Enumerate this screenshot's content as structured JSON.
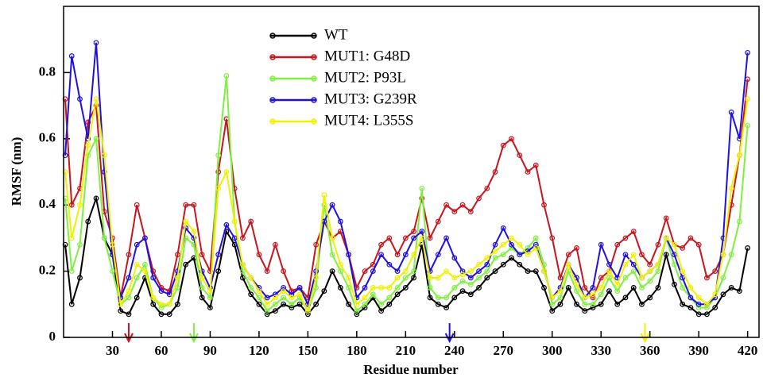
{
  "chart_data": {
    "type": "line",
    "x_label": "Residue number",
    "y_label": "RMSF (nm)",
    "xlim": [
      0,
      427
    ],
    "ylim": [
      0,
      1
    ],
    "xticks": [
      30,
      60,
      90,
      120,
      150,
      180,
      210,
      240,
      270,
      300,
      330,
      360,
      390,
      420
    ],
    "yticks": [
      0,
      0.2,
      0.4,
      0.6,
      0.8
    ],
    "legend": "upper center",
    "markers": true,
    "x": [
      1,
      5,
      10,
      15,
      20,
      25,
      30,
      35,
      40,
      45,
      50,
      55,
      60,
      65,
      70,
      75,
      80,
      85,
      90,
      95,
      100,
      105,
      110,
      115,
      120,
      125,
      130,
      135,
      140,
      145,
      150,
      155,
      160,
      165,
      170,
      175,
      180,
      185,
      190,
      195,
      200,
      205,
      210,
      215,
      220,
      225,
      230,
      235,
      240,
      245,
      250,
      255,
      260,
      265,
      270,
      275,
      280,
      285,
      290,
      295,
      300,
      305,
      310,
      315,
      320,
      325,
      330,
      335,
      340,
      345,
      350,
      355,
      360,
      365,
      370,
      375,
      380,
      385,
      390,
      395,
      400,
      405,
      410,
      415,
      420
    ],
    "series": [
      {
        "name": "WT",
        "color": "#000000",
        "values": [
          0.28,
          0.1,
          0.18,
          0.35,
          0.42,
          0.3,
          0.25,
          0.08,
          0.07,
          0.12,
          0.18,
          0.1,
          0.07,
          0.07,
          0.1,
          0.22,
          0.24,
          0.12,
          0.09,
          0.2,
          0.32,
          0.28,
          0.18,
          0.13,
          0.1,
          0.07,
          0.08,
          0.1,
          0.09,
          0.1,
          0.07,
          0.1,
          0.14,
          0.2,
          0.15,
          0.1,
          0.07,
          0.09,
          0.12,
          0.08,
          0.1,
          0.13,
          0.15,
          0.18,
          0.28,
          0.12,
          0.1,
          0.09,
          0.12,
          0.14,
          0.13,
          0.15,
          0.18,
          0.2,
          0.22,
          0.24,
          0.22,
          0.2,
          0.2,
          0.15,
          0.08,
          0.1,
          0.15,
          0.1,
          0.08,
          0.09,
          0.1,
          0.14,
          0.1,
          0.12,
          0.15,
          0.1,
          0.12,
          0.15,
          0.25,
          0.16,
          0.1,
          0.09,
          0.07,
          0.07,
          0.09,
          0.13,
          0.15,
          0.14,
          0.27
        ]
      },
      {
        "name": "MUT1: G48D",
        "color": "#c8141e",
        "values": [
          0.72,
          0.4,
          0.45,
          0.65,
          0.7,
          0.38,
          0.3,
          0.12,
          0.25,
          0.4,
          0.3,
          0.2,
          0.15,
          0.14,
          0.25,
          0.4,
          0.4,
          0.25,
          0.2,
          0.5,
          0.66,
          0.45,
          0.3,
          0.35,
          0.25,
          0.2,
          0.28,
          0.2,
          0.14,
          0.15,
          0.12,
          0.28,
          0.35,
          0.3,
          0.32,
          0.25,
          0.15,
          0.2,
          0.22,
          0.28,
          0.3,
          0.25,
          0.3,
          0.32,
          0.42,
          0.3,
          0.35,
          0.4,
          0.38,
          0.4,
          0.38,
          0.42,
          0.45,
          0.5,
          0.58,
          0.6,
          0.55,
          0.5,
          0.52,
          0.4,
          0.3,
          0.18,
          0.25,
          0.27,
          0.15,
          0.12,
          0.18,
          0.2,
          0.28,
          0.3,
          0.32,
          0.25,
          0.22,
          0.28,
          0.36,
          0.28,
          0.27,
          0.3,
          0.28,
          0.18,
          0.2,
          0.25,
          0.4,
          0.55,
          0.78
        ]
      },
      {
        "name": "MUT2: P93L",
        "color": "#80f040",
        "values": [
          0.42,
          0.2,
          0.28,
          0.55,
          0.6,
          0.3,
          0.2,
          0.1,
          0.12,
          0.18,
          0.22,
          0.12,
          0.09,
          0.1,
          0.15,
          0.3,
          0.28,
          0.15,
          0.12,
          0.55,
          0.79,
          0.35,
          0.2,
          0.15,
          0.12,
          0.08,
          0.1,
          0.12,
          0.1,
          0.12,
          0.08,
          0.15,
          0.4,
          0.25,
          0.2,
          0.15,
          0.08,
          0.1,
          0.13,
          0.1,
          0.12,
          0.15,
          0.18,
          0.2,
          0.45,
          0.15,
          0.12,
          0.12,
          0.15,
          0.17,
          0.16,
          0.18,
          0.2,
          0.24,
          0.25,
          0.27,
          0.25,
          0.27,
          0.3,
          0.22,
          0.1,
          0.12,
          0.2,
          0.14,
          0.1,
          0.1,
          0.13,
          0.18,
          0.14,
          0.18,
          0.2,
          0.15,
          0.17,
          0.2,
          0.3,
          0.22,
          0.15,
          0.12,
          0.09,
          0.09,
          0.12,
          0.18,
          0.25,
          0.35,
          0.64
        ]
      },
      {
        "name": "MUT3: G239R",
        "color": "#2010e0",
        "values": [
          0.55,
          0.85,
          0.72,
          0.6,
          0.89,
          0.5,
          0.25,
          0.12,
          0.18,
          0.28,
          0.3,
          0.18,
          0.14,
          0.13,
          0.2,
          0.33,
          0.3,
          0.2,
          0.15,
          0.25,
          0.34,
          0.3,
          0.22,
          0.18,
          0.15,
          0.12,
          0.13,
          0.15,
          0.13,
          0.15,
          0.1,
          0.2,
          0.35,
          0.4,
          0.35,
          0.25,
          0.12,
          0.15,
          0.2,
          0.25,
          0.22,
          0.2,
          0.25,
          0.3,
          0.32,
          0.2,
          0.25,
          0.3,
          0.24,
          0.2,
          0.18,
          0.2,
          0.22,
          0.28,
          0.33,
          0.28,
          0.25,
          0.26,
          0.28,
          0.2,
          0.12,
          0.15,
          0.22,
          0.18,
          0.12,
          0.15,
          0.28,
          0.22,
          0.18,
          0.25,
          0.22,
          0.18,
          0.2,
          0.22,
          0.3,
          0.25,
          0.18,
          0.12,
          0.1,
          0.1,
          0.12,
          0.3,
          0.68,
          0.6,
          0.86
        ]
      },
      {
        "name": "MUT4: L355S",
        "color": "#f0f000",
        "values": [
          0.5,
          0.3,
          0.4,
          0.58,
          0.72,
          0.55,
          0.28,
          0.1,
          0.14,
          0.22,
          0.2,
          0.12,
          0.1,
          0.1,
          0.18,
          0.35,
          0.32,
          0.18,
          0.14,
          0.45,
          0.5,
          0.35,
          0.22,
          0.18,
          0.14,
          0.1,
          0.12,
          0.14,
          0.12,
          0.13,
          0.08,
          0.18,
          0.43,
          0.3,
          0.22,
          0.18,
          0.1,
          0.12,
          0.15,
          0.15,
          0.15,
          0.18,
          0.2,
          0.25,
          0.3,
          0.18,
          0.18,
          0.2,
          0.18,
          0.19,
          0.2,
          0.22,
          0.24,
          0.26,
          0.28,
          0.3,
          0.28,
          0.25,
          0.27,
          0.2,
          0.12,
          0.14,
          0.22,
          0.16,
          0.12,
          0.13,
          0.15,
          0.2,
          0.16,
          0.22,
          0.25,
          0.18,
          0.2,
          0.22,
          0.3,
          0.28,
          0.2,
          0.15,
          0.12,
          0.1,
          0.13,
          0.25,
          0.45,
          0.55,
          0.72
        ]
      }
    ],
    "arrows": [
      {
        "x": 40,
        "color": "#c8141e"
      },
      {
        "x": 80,
        "color": "#80f040"
      },
      {
        "x": 237,
        "color": "#2010e0"
      },
      {
        "x": 357,
        "color": "#f0f000"
      }
    ]
  }
}
